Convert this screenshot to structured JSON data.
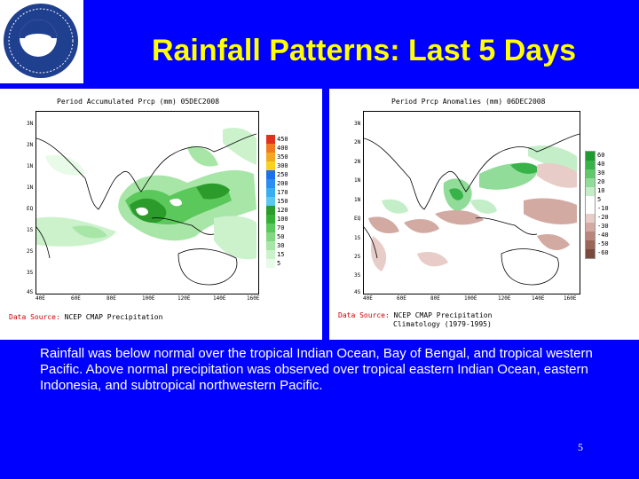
{
  "slide": {
    "title": "Rainfall Patterns: Last 5 Days",
    "logo_text": "NOAA",
    "body": "Rainfall was below normal over the tropical Indian Ocean, Bay of Bengal, and tropical western Pacific. Above normal precipitation was observed over tropical eastern Indian Ocean, eastern Indonesia, and subtropical northwestern Pacific.",
    "page_number": "5"
  },
  "left_map": {
    "title": "Period Accumulated Prcp (mm) 05DEC2008",
    "source_label": "Data Source:",
    "source_value": "NCEP CMAP Precipitation",
    "lat_labels": [
      "3N",
      "2N",
      "1N",
      "1N",
      "EQ",
      "1S",
      "2S",
      "3S",
      "4S"
    ],
    "lon_labels": [
      "40E",
      "60E",
      "80E",
      "100E",
      "120E",
      "140E",
      "160E"
    ],
    "legend": [
      {
        "label": "450",
        "color": "#e0301e"
      },
      {
        "label": "400",
        "color": "#f07a22"
      },
      {
        "label": "350",
        "color": "#f5a623"
      },
      {
        "label": "300",
        "color": "#f7d21e"
      },
      {
        "label": "250",
        "color": "#1e6ef0"
      },
      {
        "label": "200",
        "color": "#2a8ff0"
      },
      {
        "label": "170",
        "color": "#36aef0"
      },
      {
        "label": "150",
        "color": "#5ac8f0"
      },
      {
        "label": "120",
        "color": "#2b9b2b"
      },
      {
        "label": "100",
        "color": "#35b035"
      },
      {
        "label": "70",
        "color": "#5ac85a"
      },
      {
        "label": "50",
        "color": "#82d882"
      },
      {
        "label": "30",
        "color": "#a8e6a8"
      },
      {
        "label": "15",
        "color": "#ccf2cc"
      },
      {
        "label": "5",
        "color": "#e8fae8"
      }
    ]
  },
  "right_map": {
    "title": "Period Prcp Anomalies (mm) 06DEC2008",
    "source_label": "Data Source:",
    "source_value": "NCEP CMAP Precipitation",
    "source_value_2": "Climatology (1979-1995)",
    "lat_labels": [
      "3N",
      "2N",
      "2N",
      "1N",
      "1N",
      "EQ",
      "1S",
      "2S",
      "3S",
      "4S"
    ],
    "lon_labels": [
      "40E",
      "60E",
      "80E",
      "100E",
      "120E",
      "140E",
      "160E"
    ],
    "legend": [
      {
        "label": "60",
        "color": "#1e9b2e"
      },
      {
        "label": "40",
        "color": "#38b348"
      },
      {
        "label": "30",
        "color": "#5ec86a"
      },
      {
        "label": "20",
        "color": "#90dc98"
      },
      {
        "label": "10",
        "color": "#c4eec8"
      },
      {
        "label": "5",
        "color": "#ffffff"
      },
      {
        "label": "-10",
        "color": "#ffffff"
      },
      {
        "label": "-20",
        "color": "#e8ccc8"
      },
      {
        "label": "-30",
        "color": "#d2aaa2"
      },
      {
        "label": "-40",
        "color": "#b8867c"
      },
      {
        "label": "-50",
        "color": "#9a6658"
      },
      {
        "label": "-60",
        "color": "#7a4a3c"
      }
    ]
  }
}
